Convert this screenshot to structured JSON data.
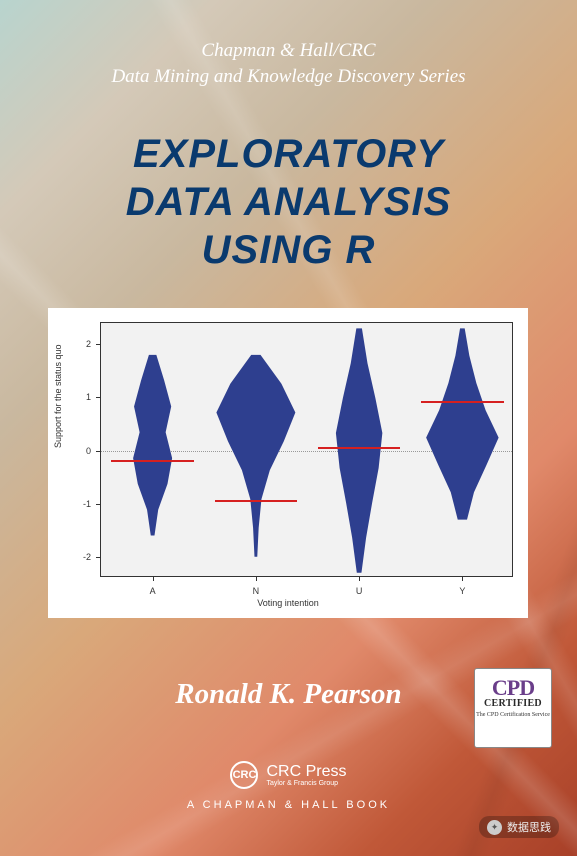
{
  "series": {
    "line1": "Chapman & Hall/CRC",
    "line2": "Data Mining and Knowledge Discovery Series",
    "text_color": "#ffffff"
  },
  "title": {
    "line1": "EXPLORATORY",
    "line2": "DATA ANALYSIS",
    "line3": "USING R",
    "color": "#0a3a6e",
    "fontsize": 40
  },
  "chart": {
    "type": "violin",
    "ylabel": "Support for the status quo",
    "xlabel": "Voting intention",
    "background_color": "#f2f2f2",
    "border_color": "#333333",
    "categories": [
      "A",
      "N",
      "U",
      "Y"
    ],
    "ylim": [
      -2.4,
      2.4
    ],
    "yticks": [
      -2,
      -1,
      0,
      1,
      2
    ],
    "violin_color": "#2e3f8f",
    "median_color": "#d62020",
    "zero_line_color": "#999999",
    "violins": [
      {
        "cat": "A",
        "median": -0.2,
        "ymin": -1.6,
        "ymax": 1.8,
        "widths": [
          0.08,
          0.25,
          0.4,
          0.28,
          0.42,
          0.32,
          0.12,
          0.04
        ]
      },
      {
        "cat": "N",
        "median": -0.95,
        "ymin": -2.0,
        "ymax": 1.8,
        "widths": [
          0.1,
          0.55,
          0.85,
          0.6,
          0.3,
          0.12,
          0.06,
          0.03
        ]
      },
      {
        "cat": "U",
        "median": 0.05,
        "ymin": -2.3,
        "ymax": 2.3,
        "widths": [
          0.06,
          0.18,
          0.35,
          0.5,
          0.42,
          0.28,
          0.15,
          0.05
        ]
      },
      {
        "cat": "Y",
        "median": 0.92,
        "ymin": -1.3,
        "ymax": 2.3,
        "widths": [
          0.05,
          0.15,
          0.3,
          0.5,
          0.78,
          0.52,
          0.25,
          0.1
        ]
      }
    ]
  },
  "author": "Ronald K. Pearson",
  "cpd": {
    "logo": "CPD",
    "certified": "CERTIFIED",
    "sub": "The CPD Certification Service"
  },
  "publisher": {
    "crc_badge": "CRC",
    "crc_press": "CRC Press",
    "taylor_francis": "Taylor & Francis Group",
    "imprint": "A CHAPMAN & HALL BOOK"
  },
  "watermark": {
    "label": "数据思践"
  }
}
